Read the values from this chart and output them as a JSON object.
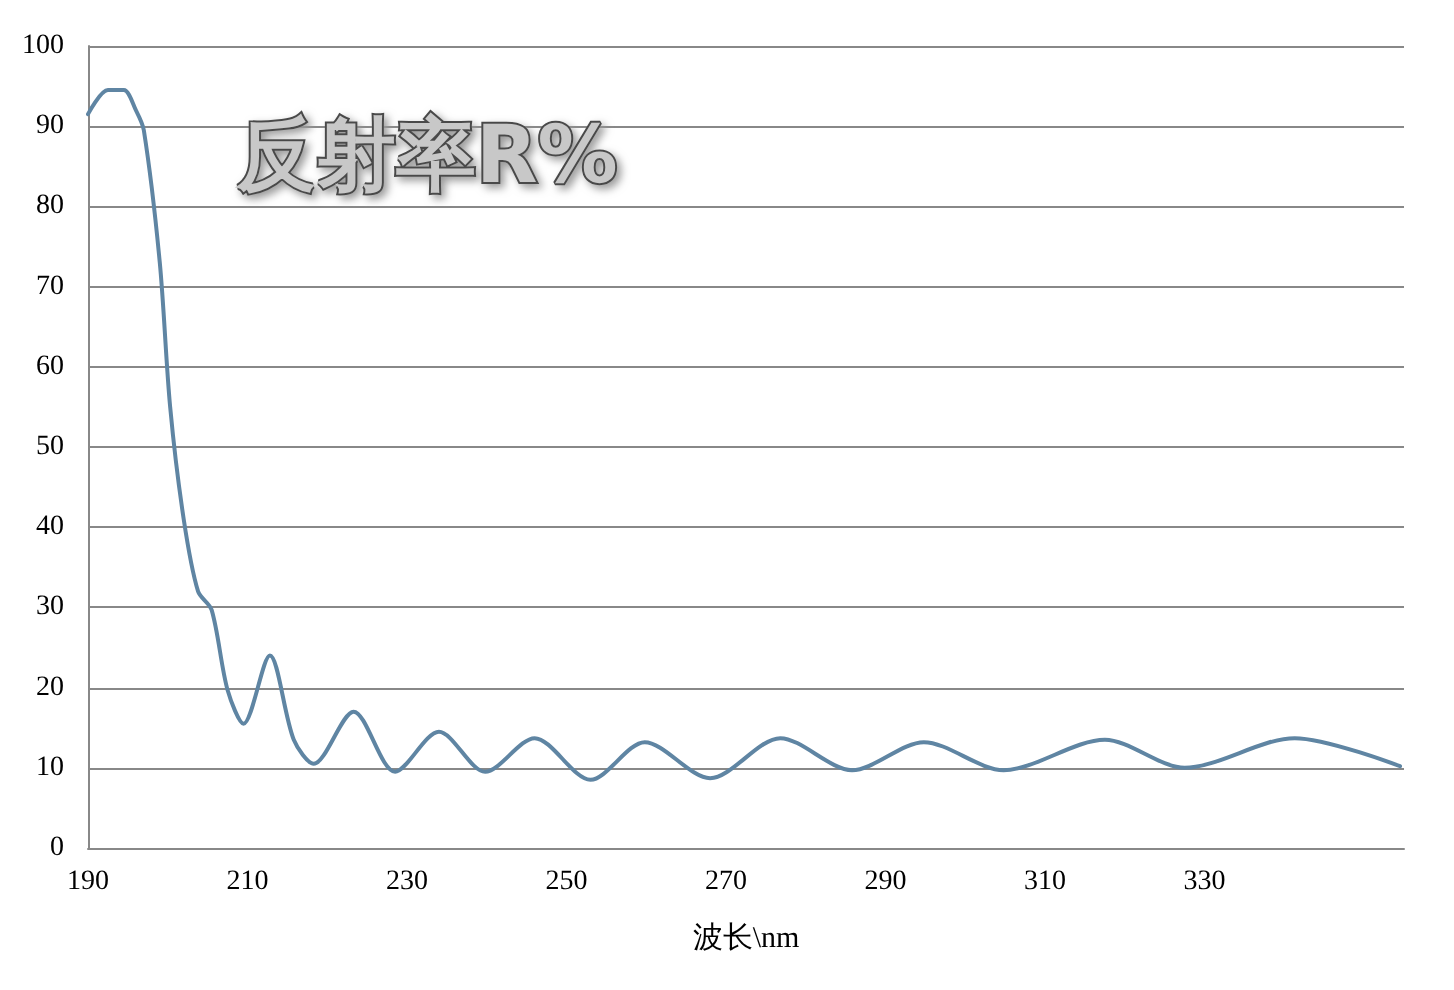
{
  "chart_data": {
    "type": "line",
    "title": "反射率R%",
    "xlabel": "波长\\nm",
    "xlim": [
      190,
      355
    ],
    "xticks": [
      190,
      210,
      230,
      250,
      270,
      290,
      310,
      330
    ],
    "ylim": [
      0,
      100
    ],
    "yticks": [
      0,
      10,
      20,
      30,
      40,
      50,
      60,
      70,
      80,
      90,
      100
    ],
    "grid": "y",
    "marker": "none",
    "line_style": "solid",
    "series": [
      {
        "color": "#5f85a3",
        "x": [
          190,
          192.5,
          194.5,
          196,
          197,
          199,
          200.3,
          202,
          203.8,
          205.5,
          207.5,
          209.5,
          212.8,
          215.8,
          218.3,
          223.3,
          228.5,
          234,
          239.8,
          246,
          253,
          259.8,
          268,
          276.8,
          285.8,
          294.8,
          304.8,
          317.5,
          327.5,
          341.3,
          354.5
        ],
        "values": [
          91.5,
          94.5,
          94.5,
          92,
          89.5,
          73,
          55,
          41,
          32,
          29.7,
          19.7,
          15.5,
          24,
          13.5,
          10.5,
          17,
          9.5,
          14.5,
          9.5,
          13.7,
          8.5,
          13.2,
          8.7,
          13.7,
          9.7,
          13.2,
          9.7,
          13.5,
          10,
          13.7,
          10.2
        ]
      }
    ]
  }
}
